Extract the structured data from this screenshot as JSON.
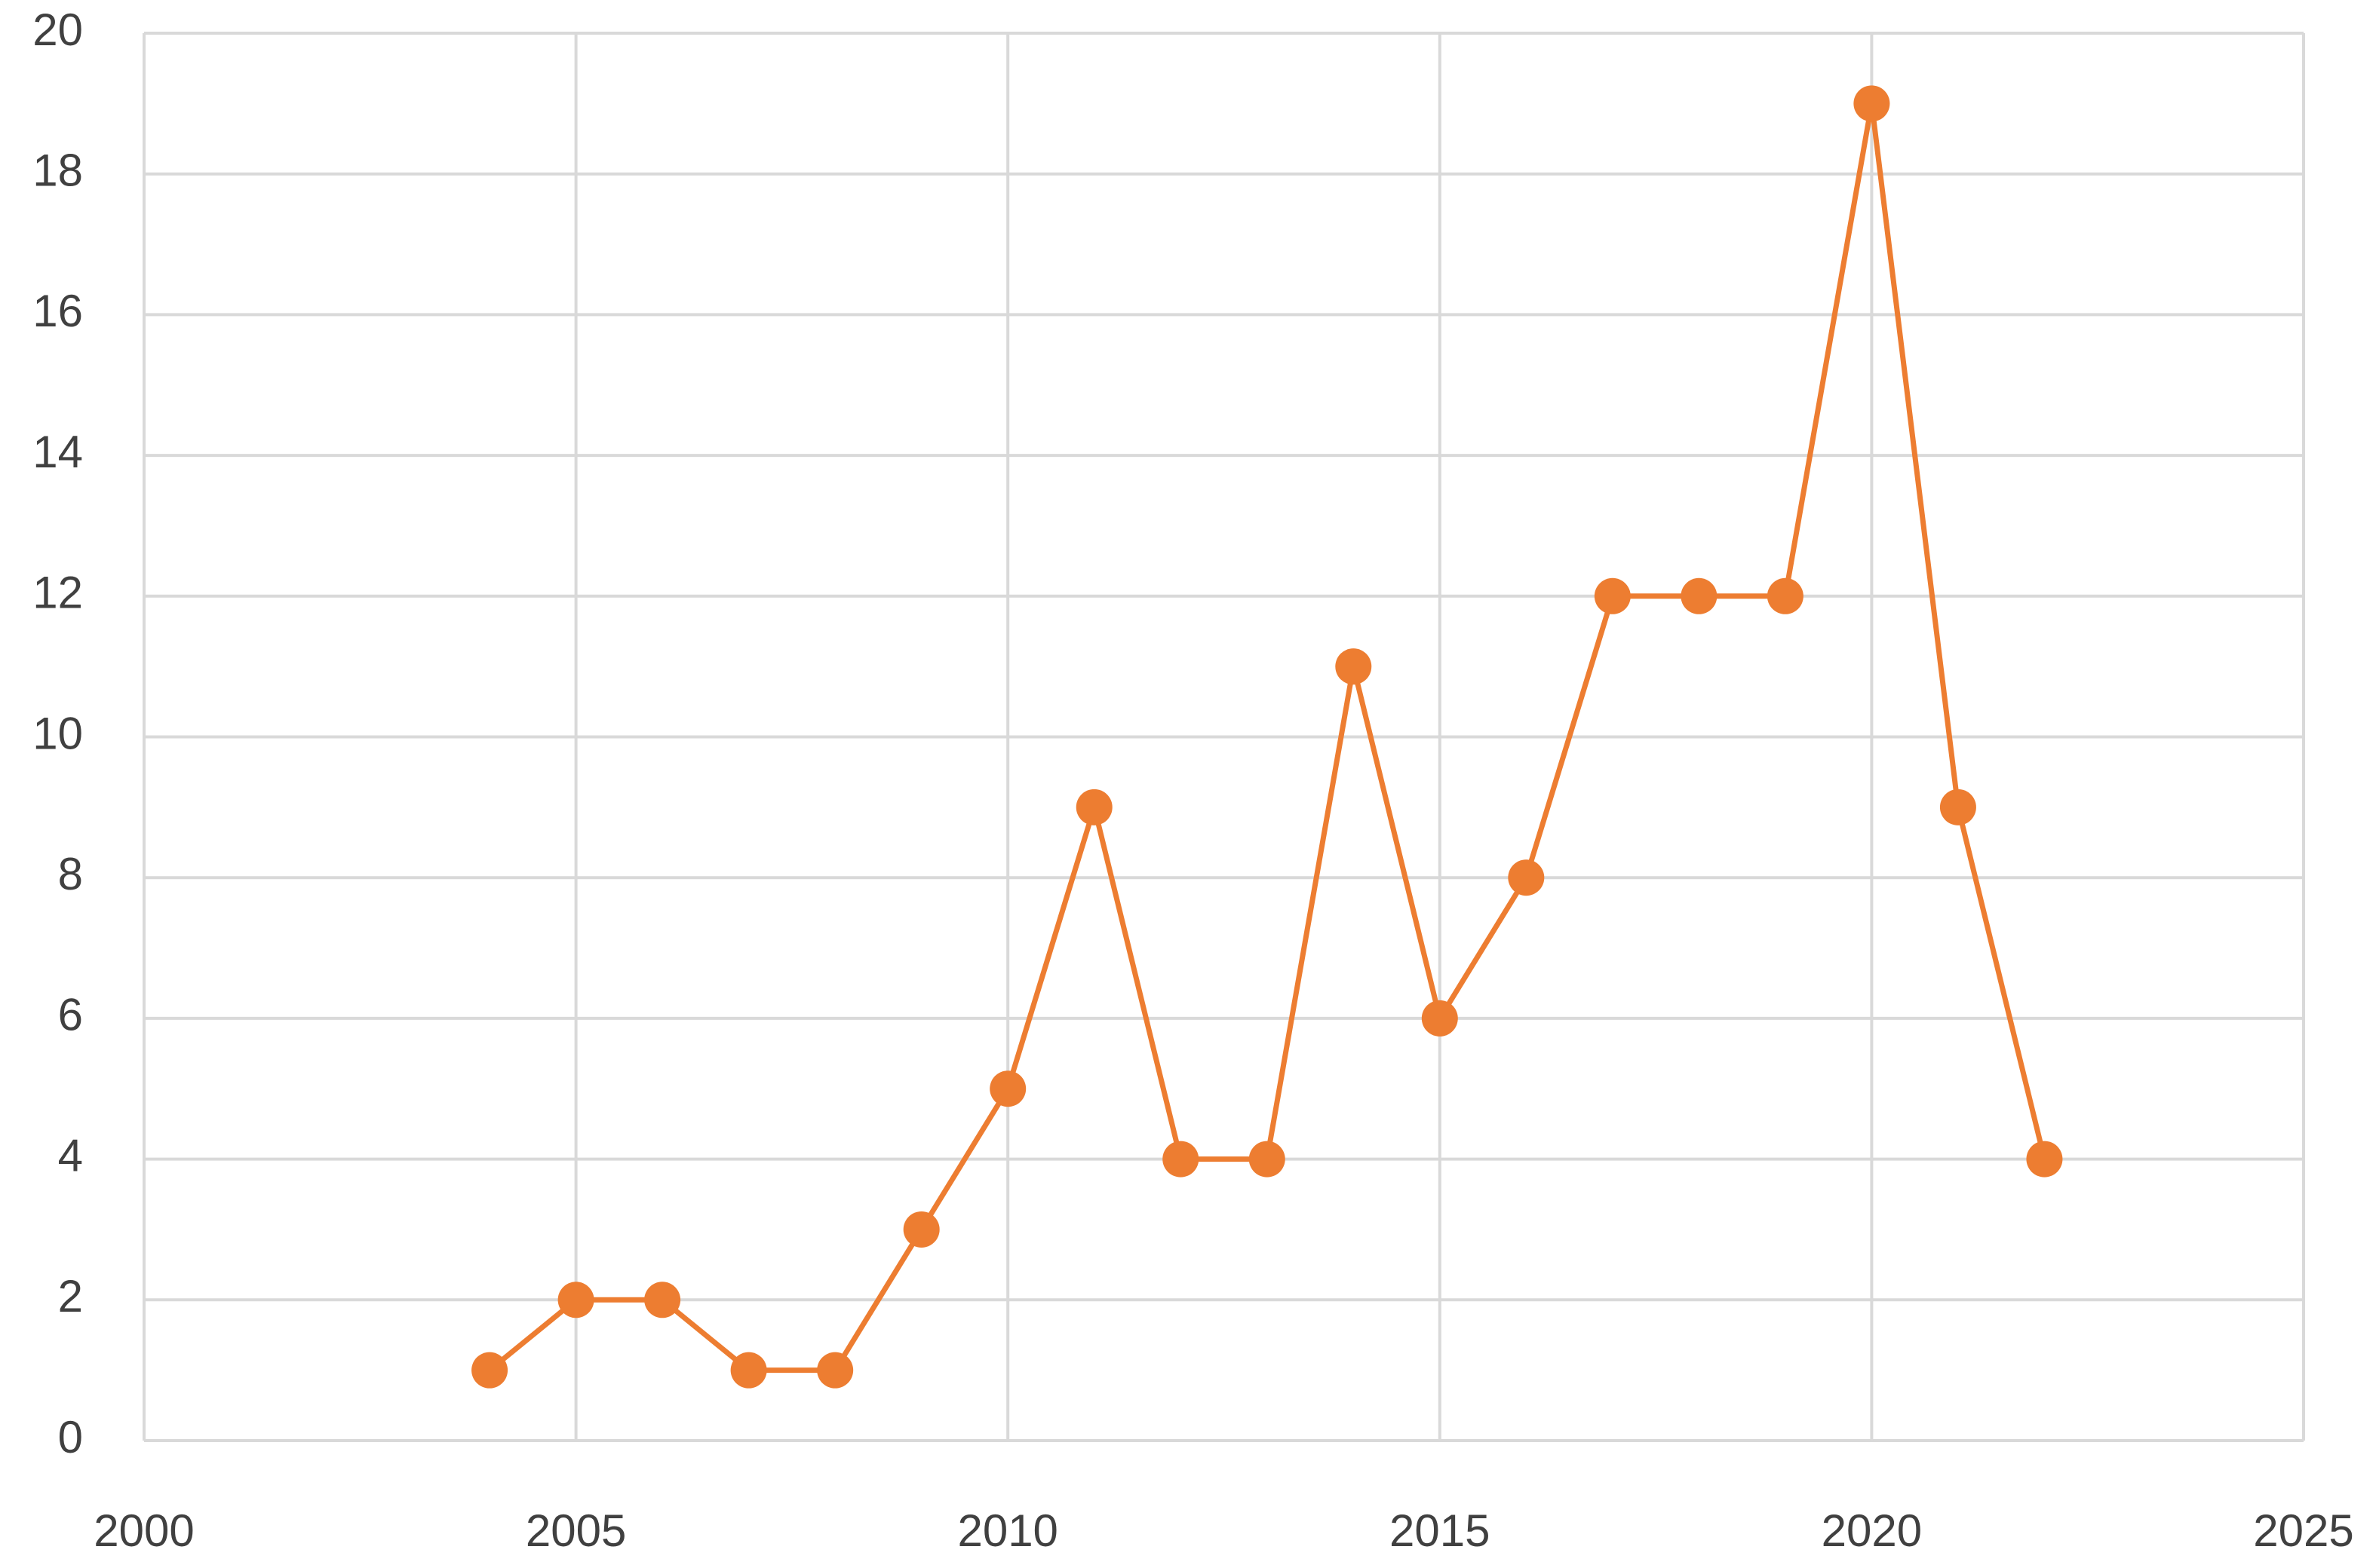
{
  "chart_data": {
    "type": "line",
    "x": [
      2004,
      2005,
      2006,
      2007,
      2008,
      2009,
      2010,
      2011,
      2012,
      2013,
      2014,
      2015,
      2016,
      2017,
      2018,
      2019,
      2020,
      2021,
      2022
    ],
    "series": [
      {
        "color": "#ed7d31",
        "values": [
          1,
          2,
          2,
          1,
          1,
          3,
          5,
          9,
          4,
          4,
          11,
          6,
          8,
          12,
          12,
          12,
          19,
          9,
          4
        ]
      }
    ],
    "xlim": [
      2000,
      2025
    ],
    "xticks": [
      2000,
      2005,
      2010,
      2015,
      2020,
      2025
    ],
    "ylim": [
      0,
      20
    ],
    "yticks": [
      0,
      2,
      4,
      6,
      8,
      10,
      12,
      14,
      16,
      18,
      20
    ],
    "grid": true,
    "markers": true
  }
}
